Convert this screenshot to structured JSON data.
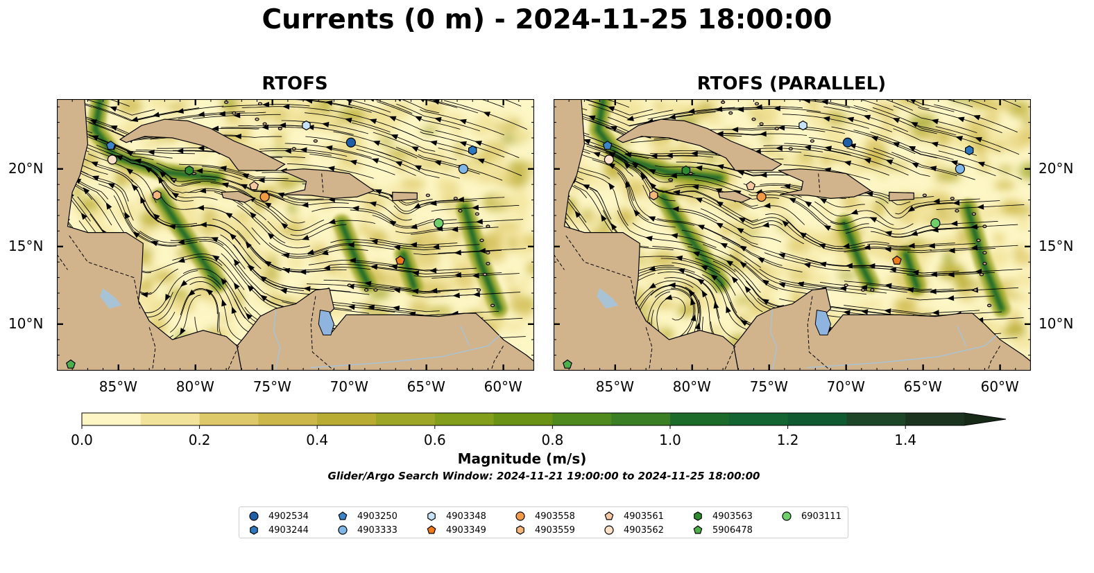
{
  "title": "Currents (0 m) - 2024-11-25 18:00:00",
  "panels": [
    {
      "title": "RTOFS"
    },
    {
      "title": "RTOFS (PARALLEL)"
    }
  ],
  "map": {
    "lon_range": [
      -89,
      -58
    ],
    "lat_range": [
      7,
      24.5
    ],
    "lon_ticks": [
      "85°W",
      "80°W",
      "75°W",
      "70°W",
      "65°W",
      "60°W"
    ],
    "lat_ticks": [
      "20°N",
      "15°N",
      "10°N"
    ],
    "colors": {
      "ocean_low": "#fdf6c5",
      "land": "#d2b48c",
      "lake": "#8fb4e0",
      "river": "#a9c3d6"
    }
  },
  "colorbar": {
    "label": "Magnitude (m/s)",
    "ticks": [
      "0.0",
      "0.2",
      "0.4",
      "0.6",
      "0.8",
      "1.0",
      "1.2",
      "1.4"
    ],
    "range": [
      0,
      1.5
    ],
    "extend": "max",
    "colors": [
      "#fef7c5",
      "#f2e39a",
      "#ddc86a",
      "#ccb84a",
      "#b8ac32",
      "#9da626",
      "#839e1a",
      "#6a9316",
      "#4f8a1f",
      "#3a7f24",
      "#1d6b2a",
      "#136430",
      "#0f5a30",
      "#1d4628",
      "#1b3420",
      "#172a18"
    ]
  },
  "search_window": "Glider/Argo Search Window: 2024-11-21 19:00:00 to 2024-11-25 18:00:00",
  "legend": [
    {
      "id": "4902534",
      "marker": "circle",
      "color": "#1f5fa8"
    },
    {
      "id": "4903244",
      "marker": "hexagon",
      "color": "#2f78bd"
    },
    {
      "id": "4903250",
      "marker": "pentagon",
      "color": "#3a84c8"
    },
    {
      "id": "4903333",
      "marker": "circle",
      "color": "#7fb7e8"
    },
    {
      "id": "4903348",
      "marker": "hexagon",
      "color": "#c7e3f7"
    },
    {
      "id": "4903349",
      "marker": "pentagon",
      "color": "#f07a18"
    },
    {
      "id": "4903558",
      "marker": "circle",
      "color": "#f29a45"
    },
    {
      "id": "4903559",
      "marker": "hexagon",
      "color": "#f7b77a"
    },
    {
      "id": "4903561",
      "marker": "pentagon",
      "color": "#f8c9a0"
    },
    {
      "id": "4903562",
      "marker": "circle",
      "color": "#fde0c8"
    },
    {
      "id": "4903563",
      "marker": "hexagon",
      "color": "#2e8b2e"
    },
    {
      "id": "5906478",
      "marker": "pentagon",
      "color": "#4daf4a"
    },
    {
      "id": "6903111",
      "marker": "circle",
      "color": "#6fcf6a"
    }
  ],
  "floats": [
    {
      "id": "4902534",
      "lon": -69.9,
      "lat": 21.7
    },
    {
      "id": "4903244",
      "lon": -62.0,
      "lat": 21.2
    },
    {
      "id": "4903250",
      "lon": -85.5,
      "lat": 21.5
    },
    {
      "id": "4903333",
      "lon": -62.6,
      "lat": 20.0
    },
    {
      "id": "4903348",
      "lon": -72.8,
      "lat": 22.8
    },
    {
      "id": "4903349",
      "lon": -66.7,
      "lat": 14.1
    },
    {
      "id": "4903558",
      "lon": -75.5,
      "lat": 18.2
    },
    {
      "id": "4903559",
      "lon": -82.5,
      "lat": 18.3
    },
    {
      "id": "4903561",
      "lon": -76.2,
      "lat": 18.9
    },
    {
      "id": "4903562",
      "lon": -85.4,
      "lat": 20.6
    },
    {
      "id": "4903563",
      "lon": -80.4,
      "lat": 19.9
    },
    {
      "id": "5906478",
      "lon": -88.1,
      "lat": 7.4
    },
    {
      "id": "6903111",
      "lon": -64.2,
      "lat": 16.5
    }
  ]
}
